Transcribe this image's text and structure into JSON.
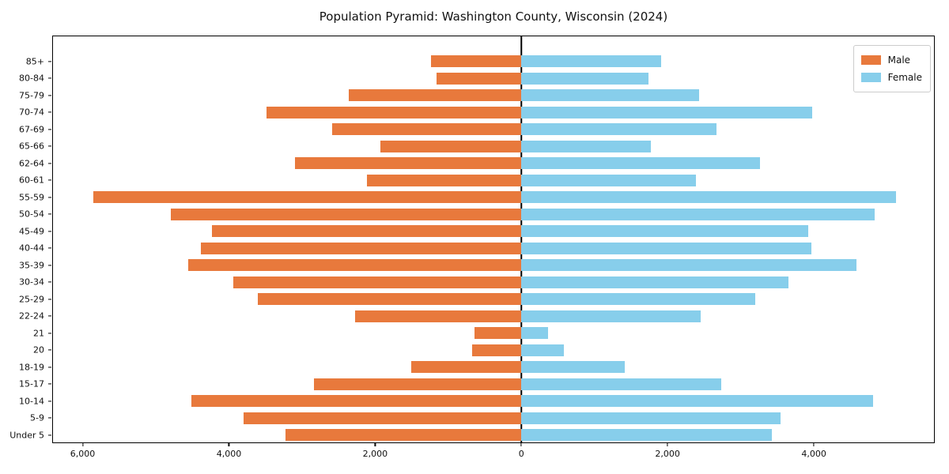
{
  "title": "Population Pyramid: Washington County, Wisconsin (2024)",
  "legend": {
    "male_label": "Male",
    "female_label": "Female"
  },
  "colors": {
    "male": "#E8793C",
    "female": "#87CEEB",
    "axis": "#000000",
    "background": "#FFFFFF"
  },
  "chart_data": {
    "type": "bar",
    "subtype": "population-pyramid",
    "title": "Population Pyramid: Washington County, Wisconsin (2024)",
    "xlabel": "",
    "ylabel": "",
    "grid": false,
    "legend_position": "upper right",
    "categories_top_to_bottom": [
      "85+",
      "80-84",
      "75-79",
      "70-74",
      "67-69",
      "65-66",
      "62-64",
      "60-61",
      "55-59",
      "50-54",
      "45-49",
      "40-44",
      "35-39",
      "30-34",
      "25-29",
      "22-24",
      "21",
      "20",
      "18-19",
      "15-17",
      "10-14",
      "5-9",
      "Under 5"
    ],
    "series": [
      {
        "name": "Male",
        "side": "left",
        "color": "#E8793C",
        "values": [
          1240,
          1160,
          2370,
          3490,
          2590,
          1930,
          3100,
          2120,
          5870,
          4800,
          4240,
          4390,
          4560,
          3950,
          3610,
          2280,
          640,
          670,
          1510,
          2840,
          4520,
          3810,
          3230
        ]
      },
      {
        "name": "Female",
        "side": "right",
        "color": "#87CEEB",
        "values": [
          1920,
          1740,
          2440,
          3990,
          2670,
          1780,
          3270,
          2390,
          5130,
          4840,
          3930,
          3970,
          4590,
          3660,
          3200,
          2460,
          370,
          580,
          1420,
          2740,
          4820,
          3550,
          3430
        ]
      }
    ],
    "x_ticks": [
      {
        "value": -6000,
        "label": "6,000"
      },
      {
        "value": -4000,
        "label": "4,000"
      },
      {
        "value": -2000,
        "label": "2,000"
      },
      {
        "value": 0,
        "label": "0"
      },
      {
        "value": 2000,
        "label": "2,000"
      },
      {
        "value": 4000,
        "label": "4,000"
      }
    ],
    "xlim": [
      -6417,
      5654
    ]
  }
}
